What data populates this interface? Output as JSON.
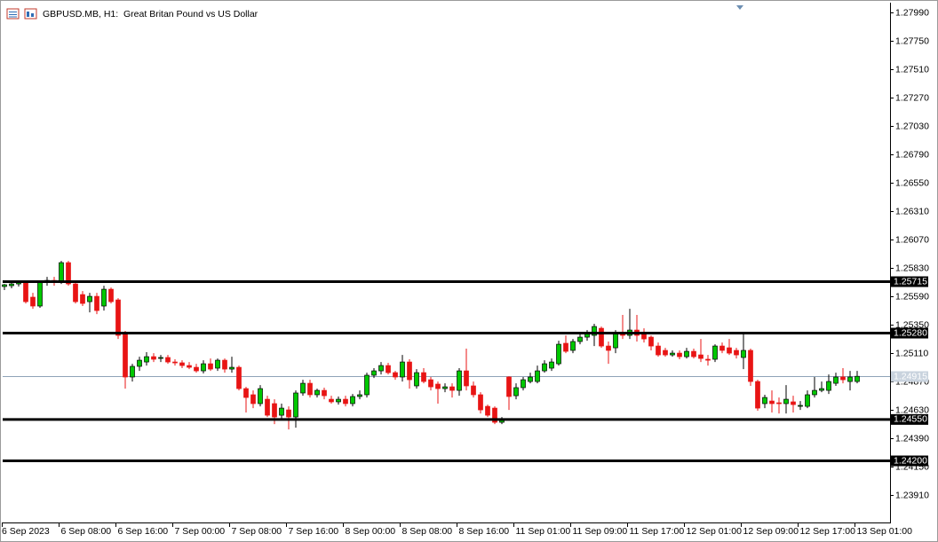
{
  "chart_data": {
    "type": "candlestick",
    "title": "GBPUSD.MB, H1:  Great Britan Pound vs US Dollar",
    "up_color": "#00c800",
    "down_color": "#e81414",
    "grid": false,
    "ylim": [
      1.23679,
      1.28074
    ],
    "yticks": [
      {
        "value": 1.2799,
        "label": "1.27990"
      },
      {
        "value": 1.2775,
        "label": "1.27750"
      },
      {
        "value": 1.2751,
        "label": "1.27510"
      },
      {
        "value": 1.2727,
        "label": "1.27270"
      },
      {
        "value": 1.2703,
        "label": "1.27030"
      },
      {
        "value": 1.2679,
        "label": "1.26790"
      },
      {
        "value": 1.2655,
        "label": "1.26550"
      },
      {
        "value": 1.2631,
        "label": "1.26310"
      },
      {
        "value": 1.2607,
        "label": "1.26070"
      },
      {
        "value": 1.2583,
        "label": "1.25830"
      },
      {
        "value": 1.2559,
        "label": "1.25590"
      },
      {
        "value": 1.2535,
        "label": "1.25350"
      },
      {
        "value": 1.2511,
        "label": "1.25110"
      },
      {
        "value": 1.2487,
        "label": "1.24870"
      },
      {
        "value": 1.2463,
        "label": "1.24630"
      },
      {
        "value": 1.2439,
        "label": "1.24390"
      },
      {
        "value": 1.2415,
        "label": "1.24150"
      },
      {
        "value": 1.2391,
        "label": "1.23910"
      }
    ],
    "levels": [
      {
        "value": 1.25715,
        "label": "1.25715"
      },
      {
        "value": 1.2528,
        "label": "1.25280"
      },
      {
        "value": 1.2455,
        "label": "1.24550"
      },
      {
        "value": 1.242,
        "label": "1.24200"
      }
    ],
    "current_price": {
      "value": 1.24915,
      "label": "1.24915"
    },
    "categories": [
      "6 Sep 2023",
      null,
      null,
      null,
      null,
      null,
      null,
      null,
      "6 Sep 08:00",
      null,
      null,
      null,
      null,
      null,
      null,
      null,
      "6 Sep 16:00",
      null,
      null,
      null,
      null,
      null,
      null,
      null,
      "7 Sep 00:00",
      null,
      null,
      null,
      null,
      null,
      null,
      null,
      "7 Sep 08:00",
      null,
      null,
      null,
      null,
      null,
      null,
      null,
      "7 Sep 16:00",
      null,
      null,
      null,
      null,
      null,
      null,
      null,
      "8 Sep 00:00",
      null,
      null,
      null,
      null,
      null,
      null,
      null,
      "8 Sep 08:00",
      null,
      null,
      null,
      null,
      null,
      null,
      null,
      "8 Sep 16:00",
      null,
      null,
      null,
      null,
      null,
      null,
      null,
      "11 Sep 01:00",
      null,
      null,
      null,
      null,
      null,
      null,
      null,
      "11 Sep 09:00",
      null,
      null,
      null,
      null,
      null,
      null,
      null,
      "11 Sep 17:00",
      null,
      null,
      null,
      null,
      null,
      null,
      null,
      "12 Sep 01:00",
      null,
      null,
      null,
      null,
      null,
      null,
      null,
      "12 Sep 09:00",
      null,
      null,
      null,
      null,
      null,
      null,
      null,
      "12 Sep 17:00",
      null,
      null,
      null,
      null,
      null,
      null,
      null,
      "13 Sep 01:00"
    ],
    "open": [
      1.25674,
      1.25681,
      1.25696,
      1.25711,
      1.25584,
      1.25509,
      1.25711,
      1.25726,
      1.25711,
      1.25876,
      1.25696,
      1.25606,
      1.25546,
      1.25591,
      1.25509,
      1.25651,
      1.25561,
      1.25284,
      1.24909,
      1.24999,
      1.25036,
      1.25081,
      1.25066,
      1.25074,
      1.25036,
      1.25029,
      1.25006,
      1.24991,
      1.24961,
      1.25021,
      1.24984,
      1.25051,
      1.24976,
      1.24991,
      1.24811,
      1.24759,
      1.24684,
      1.24721,
      1.24684,
      1.24586,
      1.24631,
      1.24571,
      1.24774,
      1.24856,
      1.24759,
      1.24796,
      1.24721,
      1.24699,
      1.24721,
      1.24684,
      1.24744,
      1.24759,
      1.24924,
      1.24961,
      1.25006,
      1.24946,
      1.24909,
      1.25036,
      1.24834,
      1.24946,
      1.24886,
      1.24849,
      1.24811,
      1.24826,
      1.24796,
      1.24961,
      1.24834,
      1.24759,
      1.24661,
      1.24646,
      1.24526,
      1.24909,
      1.24751,
      1.24819,
      1.24871,
      1.24871,
      1.24961,
      1.24984,
      1.25021,
      1.25194,
      1.25134,
      1.25209,
      1.25246,
      1.25261,
      1.25321,
      1.25171,
      1.25156,
      1.25284,
      1.25261,
      1.25306,
      1.25276,
      1.25246,
      1.25171,
      1.25134,
      1.25096,
      1.25111,
      1.25081,
      1.25126,
      1.25096,
      1.25059,
      1.25059,
      1.25171,
      1.25156,
      1.25134,
      1.25074,
      1.25134,
      1.24871,
      1.24684,
      1.24706,
      1.24691,
      1.24684,
      1.24699,
      1.24661,
      1.24661,
      1.24759,
      1.24796,
      1.24796,
      1.24856,
      1.24909,
      1.24871,
      1.24871
    ],
    "high": [
      1.25696,
      1.25711,
      1.25726,
      1.25726,
      1.25621,
      1.25726,
      1.25756,
      1.25756,
      1.25891,
      1.25891,
      1.25711,
      1.25636,
      1.25621,
      1.25621,
      1.25681,
      1.25666,
      1.25576,
      1.25299,
      1.25021,
      1.25081,
      1.25119,
      1.25111,
      1.25096,
      1.25096,
      1.25059,
      1.25051,
      1.25036,
      1.25021,
      1.25051,
      1.25066,
      1.25066,
      1.25066,
      1.25081,
      1.25006,
      1.24826,
      1.24796,
      1.24841,
      1.24751,
      1.24721,
      1.24684,
      1.24661,
      1.24796,
      1.24886,
      1.24886,
      1.24811,
      1.24819,
      1.24751,
      1.24744,
      1.24751,
      1.24766,
      1.24796,
      1.24946,
      1.24984,
      1.25036,
      1.25029,
      1.24961,
      1.25096,
      1.25059,
      1.24976,
      1.24984,
      1.24909,
      1.24871,
      1.24856,
      1.24856,
      1.24984,
      1.25149,
      1.24871,
      1.24781,
      1.24676,
      1.24661,
      1.24571,
      1.24916,
      1.24856,
      1.24909,
      1.24946,
      1.25006,
      1.25051,
      1.25066,
      1.25216,
      1.25261,
      1.25231,
      1.25276,
      1.25306,
      1.25359,
      1.25336,
      1.25209,
      1.25306,
      1.25434,
      1.25486,
      1.25434,
      1.25321,
      1.25261,
      1.25201,
      1.25156,
      1.25134,
      1.25134,
      1.25156,
      1.25149,
      1.25231,
      1.25096,
      1.25186,
      1.25201,
      1.25231,
      1.25156,
      1.25284,
      1.25149,
      1.24886,
      1.24759,
      1.24796,
      1.24736,
      1.24841,
      1.24751,
      1.24706,
      1.24796,
      1.24909,
      1.24871,
      1.24931,
      1.24946,
      1.24984,
      1.24961,
      1.24961
    ],
    "low": [
      1.25644,
      1.25659,
      1.25674,
      1.25531,
      1.25486,
      1.25494,
      1.25681,
      1.25681,
      1.25696,
      1.25681,
      1.25531,
      1.25509,
      1.25456,
      1.25441,
      1.25471,
      1.25531,
      1.25231,
      1.24811,
      1.24871,
      1.24961,
      1.25006,
      1.25036,
      1.25036,
      1.25021,
      1.25006,
      1.24984,
      1.24976,
      1.24946,
      1.24939,
      1.24961,
      1.24961,
      1.24946,
      1.24946,
      1.24796,
      1.24609,
      1.24646,
      1.24661,
      1.24571,
      1.24511,
      1.24556,
      1.24466,
      1.24481,
      1.24751,
      1.24736,
      1.24736,
      1.24721,
      1.24684,
      1.24676,
      1.24661,
      1.24661,
      1.24721,
      1.24736,
      1.24901,
      1.24931,
      1.24931,
      1.24886,
      1.24871,
      1.24811,
      1.24811,
      1.24856,
      1.24796,
      1.24684,
      1.24781,
      1.24736,
      1.24751,
      1.24796,
      1.24736,
      1.24601,
      1.24571,
      1.24511,
      1.24511,
      1.24631,
      1.24721,
      1.24796,
      1.24856,
      1.24856,
      1.24946,
      1.24961,
      1.25006,
      1.25111,
      1.25111,
      1.25186,
      1.25216,
      1.25171,
      1.25156,
      1.25021,
      1.25111,
      1.25231,
      1.25231,
      1.25209,
      1.25201,
      1.25134,
      1.25081,
      1.25081,
      1.25081,
      1.25059,
      1.25066,
      1.25066,
      1.25036,
      1.25006,
      1.25036,
      1.25111,
      1.25096,
      1.25066,
      1.24976,
      1.24834,
      1.24624,
      1.24646,
      1.24609,
      1.24601,
      1.24601,
      1.24609,
      1.24631,
      1.24646,
      1.24736,
      1.24781,
      1.24766,
      1.24834,
      1.24856,
      1.24796,
      1.24856
    ],
    "close": [
      1.25689,
      1.25696,
      1.25711,
      1.25546,
      1.25509,
      1.25711,
      1.25726,
      1.25711,
      1.25876,
      1.25696,
      1.25546,
      1.25531,
      1.25591,
      1.25471,
      1.25651,
      1.25546,
      1.25261,
      1.24909,
      1.24999,
      1.25051,
      1.25081,
      1.25059,
      1.25074,
      1.25036,
      1.25029,
      1.25006,
      1.24991,
      1.24961,
      1.25021,
      1.24976,
      1.25051,
      1.24976,
      1.24991,
      1.24811,
      1.24736,
      1.24684,
      1.24811,
      1.24586,
      1.24571,
      1.24646,
      1.24571,
      1.24774,
      1.24856,
      1.24759,
      1.24796,
      1.24751,
      1.24699,
      1.24721,
      1.24684,
      1.24744,
      1.24759,
      1.24924,
      1.24961,
      1.25006,
      1.24946,
      1.24909,
      1.25036,
      1.24886,
      1.24946,
      1.24871,
      1.24826,
      1.24811,
      1.24826,
      1.24796,
      1.24961,
      1.24834,
      1.24759,
      1.24631,
      1.24586,
      1.24526,
      1.24556,
      1.24744,
      1.24819,
      1.24886,
      1.24909,
      1.24961,
      1.25021,
      1.25036,
      1.25186,
      1.25126,
      1.25209,
      1.25246,
      1.25284,
      1.25336,
      1.25171,
      1.25134,
      1.25284,
      1.25261,
      1.25306,
      1.25261,
      1.25231,
      1.25171,
      1.25096,
      1.25096,
      1.25111,
      1.25081,
      1.25126,
      1.25081,
      1.25066,
      1.25051,
      1.25171,
      1.25134,
      1.25111,
      1.25096,
      1.25134,
      1.24871,
      1.24646,
      1.24736,
      1.24684,
      1.24684,
      1.24721,
      1.24676,
      1.24669,
      1.24759,
      1.24796,
      1.24811,
      1.24871,
      1.24909,
      1.24886,
      1.24909,
      1.24915
    ]
  }
}
